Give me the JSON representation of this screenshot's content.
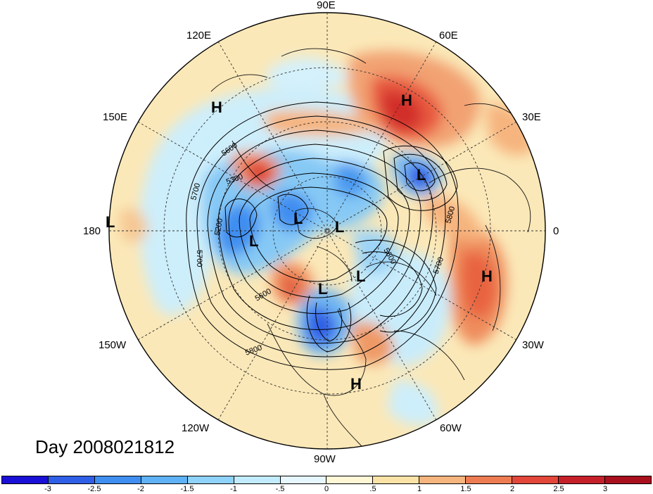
{
  "title": "Day 2008021812",
  "longitude_labels": {
    "top": "90E",
    "upper_left": "120E",
    "upper_right": "60E",
    "left_upper": "150E",
    "right_upper": "30E",
    "left": "180",
    "right": "0",
    "left_lower": "150W",
    "right_lower": "30W",
    "lower_left": "120W",
    "lower_right": "60W",
    "bottom": "90W"
  },
  "pressure_centers": [
    {
      "type": "H",
      "label": "H"
    },
    {
      "type": "H",
      "label": "H"
    },
    {
      "type": "L",
      "label": "L"
    },
    {
      "type": "L",
      "label": "L"
    },
    {
      "type": "L",
      "label": "L"
    },
    {
      "type": "L",
      "label": "L"
    },
    {
      "type": "L",
      "label": "L"
    },
    {
      "type": "L",
      "label": "L"
    },
    {
      "type": "L",
      "label": "L"
    },
    {
      "type": "H",
      "label": "H"
    },
    {
      "type": "H",
      "label": "H"
    }
  ],
  "contour_labels": [
    "5600",
    "5300",
    "5700",
    "5200",
    "5700",
    "5600",
    "5800",
    "5600",
    "5700",
    "5800"
  ],
  "colorbar": {
    "ticks": [
      "-3",
      "-2.5",
      "-2",
      "-1.5",
      "-1",
      "-.5",
      "0",
      ".5",
      "1",
      "1.5",
      "2",
      "2.5",
      "3"
    ],
    "colors": [
      "#1a0fd6",
      "#2f5fe6",
      "#3f8ef0",
      "#5fb2f5",
      "#8fd2fa",
      "#c2ecfd",
      "#e6f7fe",
      "#fff7d6",
      "#fbe3a8",
      "#f6b47e",
      "#ee7c53",
      "#e2473a",
      "#c5202a",
      "#a8101e"
    ]
  }
}
